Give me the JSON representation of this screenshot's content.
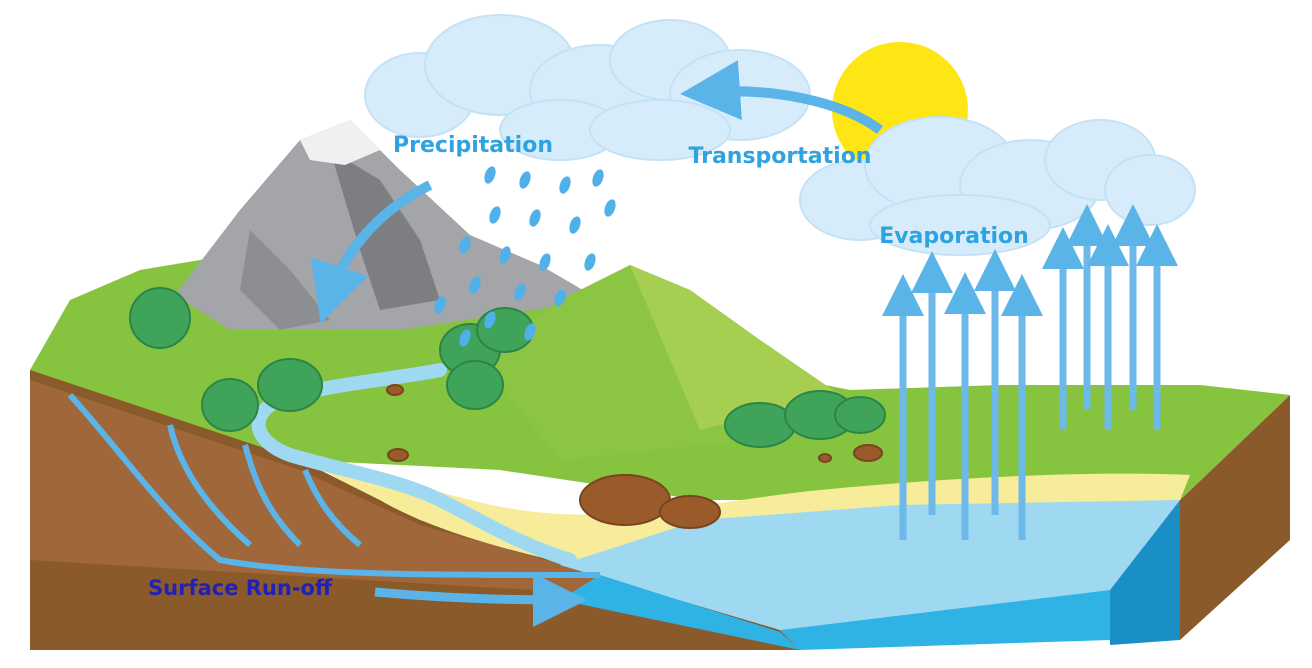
{
  "labels": {
    "precipitation": "Precipitation",
    "transportation": "Transportation",
    "evaporation": "Evaporation",
    "surface_runoff": "Surface Run-off"
  },
  "colors": {
    "label_light_blue": "#2ea3e0",
    "label_dark_blue": "#2121b8",
    "arrow_blue": "#5ab4e8",
    "water": "#2fb3e4",
    "grass": "#86c440",
    "soil": "#8a5a2b",
    "sand": "#f6ec9a",
    "sun": "#fde614",
    "cloud": "#d6ecfa",
    "mountain": "#a4a5a8"
  },
  "icons": [
    "sun-icon",
    "cloud-icon",
    "rain-drop-icon",
    "tree-icon",
    "rock-icon",
    "arrow-icon"
  ]
}
